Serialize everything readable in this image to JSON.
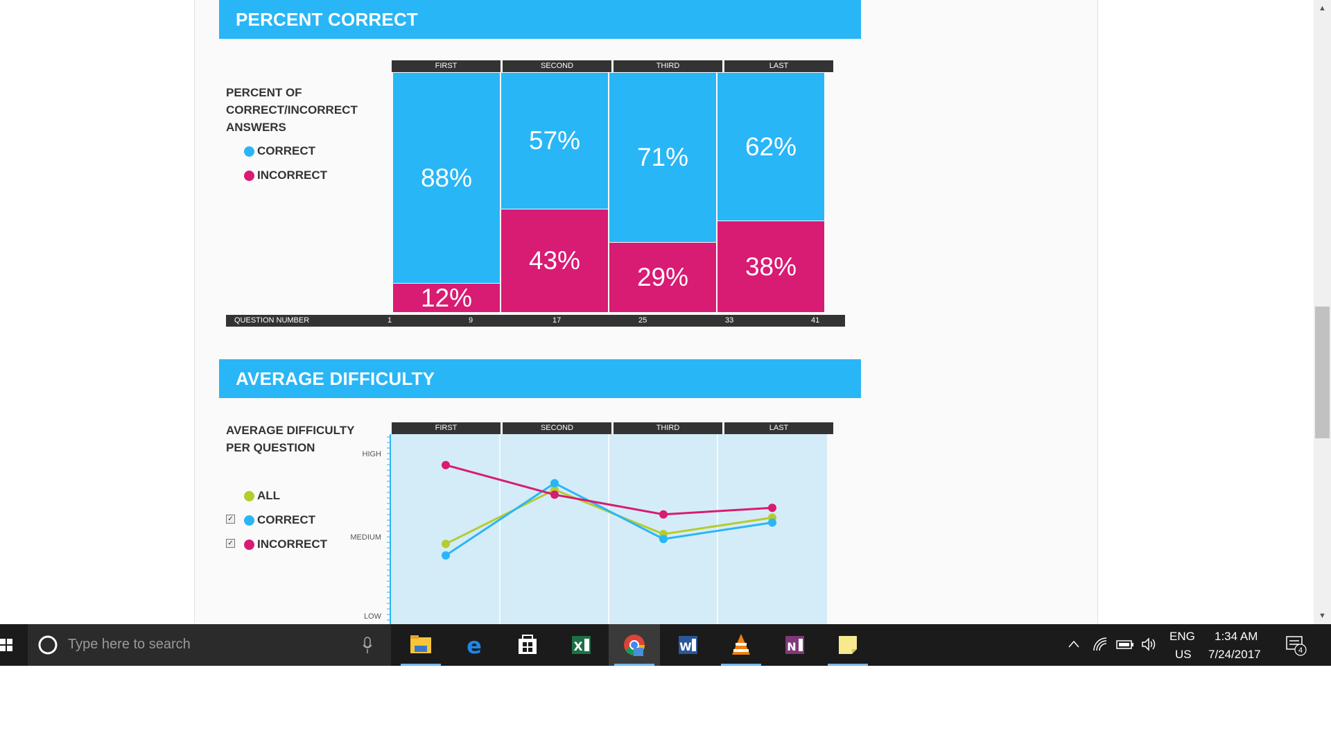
{
  "sections": {
    "percent_correct_title": "PERCENT CORRECT",
    "average_difficulty_title": "AVERAGE DIFFICULTY"
  },
  "percent_chart": {
    "desc_line1": "PERCENT OF",
    "desc_line2": "CORRECT/INCORRECT",
    "desc_line3": "ANSWERS",
    "legend_correct": "CORRECT",
    "legend_incorrect": "INCORRECT",
    "quarters": [
      "FIRST",
      "SECOND",
      "THIRD",
      "LAST"
    ],
    "correct_labels": [
      "88%",
      "57%",
      "71%",
      "62%"
    ],
    "incorrect_labels": [
      "12%",
      "43%",
      "29%",
      "38%"
    ],
    "axis_title": "QUESTION NUMBER",
    "axis_ticks": [
      "1",
      "9",
      "17",
      "25",
      "33",
      "41"
    ]
  },
  "difficulty_chart": {
    "desc_line1": "AVERAGE DIFFICULTY",
    "desc_line2": "PER QUESTION",
    "legend_all": "ALL",
    "legend_correct": "CORRECT",
    "legend_incorrect": "INCORRECT",
    "check_mark": "✓",
    "quarters": [
      "FIRST",
      "SECOND",
      "THIRD",
      "LAST"
    ],
    "y_high": "HIGH",
    "y_medium": "MEDIUM",
    "y_low": "LOW"
  },
  "chart_data": [
    {
      "type": "bar",
      "categories": [
        "FIRST",
        "SECOND",
        "THIRD",
        "LAST"
      ],
      "series": [
        {
          "name": "CORRECT",
          "values": [
            88,
            57,
            71,
            62
          ]
        },
        {
          "name": "INCORRECT",
          "values": [
            12,
            43,
            29,
            38
          ]
        }
      ],
      "xlabel": "QUESTION NUMBER",
      "x_ticks": [
        "1",
        "9",
        "17",
        "25",
        "33",
        "41"
      ],
      "stacked": true,
      "colors": {
        "CORRECT": "#29b6f6",
        "INCORRECT": "#d81b73"
      }
    },
    {
      "type": "line",
      "categories": [
        "FIRST",
        "SECOND",
        "THIRD",
        "LAST"
      ],
      "y_ticks": [
        "LOW",
        "MEDIUM",
        "HIGH"
      ],
      "ylim": [
        0,
        1
      ],
      "series": [
        {
          "name": "ALL",
          "values": [
            0.45,
            0.78,
            0.51,
            0.61
          ],
          "color": "#b5cc2e"
        },
        {
          "name": "CORRECT",
          "values": [
            0.38,
            0.82,
            0.48,
            0.58
          ],
          "color": "#29b6f6"
        },
        {
          "name": "INCORRECT",
          "values": [
            0.93,
            0.75,
            0.63,
            0.67
          ],
          "color": "#d81b73"
        }
      ]
    }
  ],
  "taskbar": {
    "search_placeholder": "Type here to search",
    "lang_top": "ENG",
    "lang_bottom": "US",
    "time": "1:34 AM",
    "date": "7/24/2017",
    "notification_count": "4"
  }
}
